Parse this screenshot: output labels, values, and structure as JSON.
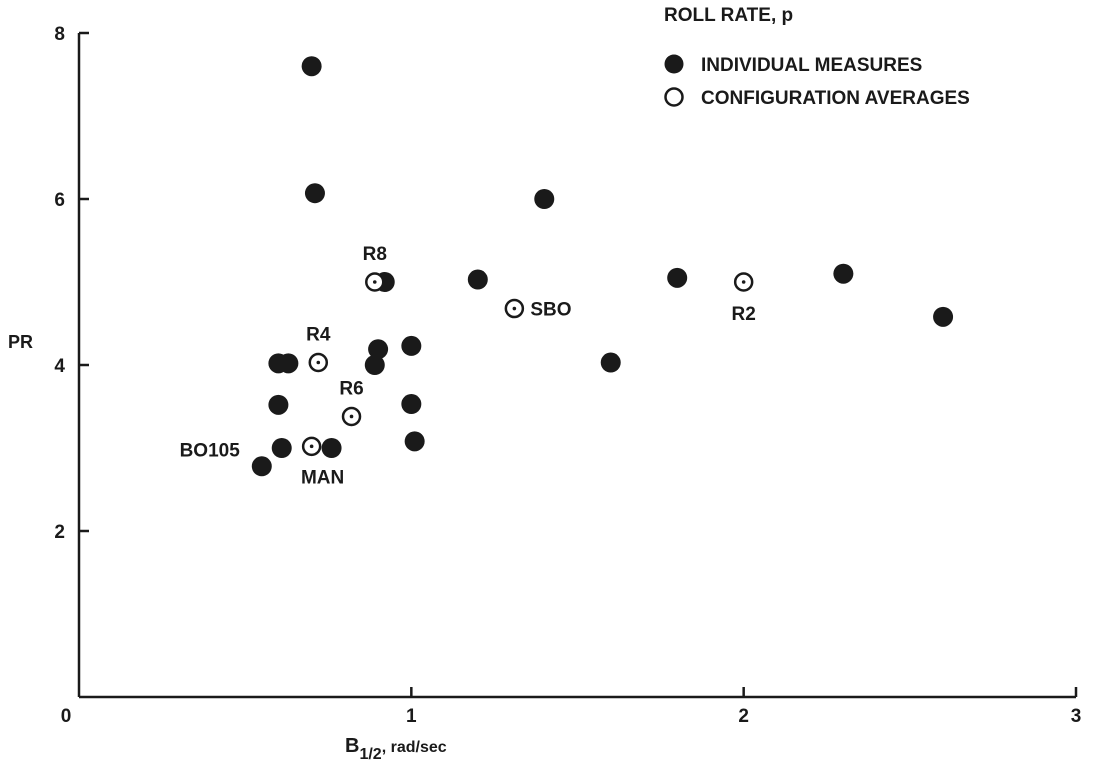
{
  "chart_data": {
    "type": "scatter",
    "title": "",
    "xlabel_main": "B",
    "xlabel_sub": "1/2",
    "xlabel_rest": ", rad/sec",
    "ylabel": "PR",
    "xlim": [
      0,
      3
    ],
    "ylim": [
      0,
      8
    ],
    "xticks": [
      {
        "value": 0,
        "label": "0"
      },
      {
        "value": 1,
        "label": "1"
      },
      {
        "value": 2,
        "label": "2"
      },
      {
        "value": 3,
        "label": "3"
      }
    ],
    "yticks": [
      {
        "value": 2,
        "label": "2"
      },
      {
        "value": 4,
        "label": "4"
      },
      {
        "value": 6,
        "label": "6"
      },
      {
        "value": 8,
        "label": "8"
      }
    ],
    "legend_title": "ROLL RATE, p",
    "legend_position": "top-right",
    "series": [
      {
        "name": "INDIVIDUAL MEASURES",
        "marker": "filled-circle",
        "points": [
          {
            "x": 0.7,
            "y": 7.6
          },
          {
            "x": 0.71,
            "y": 6.07
          },
          {
            "x": 1.4,
            "y": 6.0
          },
          {
            "x": 0.92,
            "y": 5.0
          },
          {
            "x": 1.2,
            "y": 5.03
          },
          {
            "x": 1.8,
            "y": 5.05
          },
          {
            "x": 2.3,
            "y": 5.1
          },
          {
            "x": 2.6,
            "y": 4.58
          },
          {
            "x": 0.9,
            "y": 4.19
          },
          {
            "x": 1.0,
            "y": 4.23
          },
          {
            "x": 0.89,
            "y": 4.0
          },
          {
            "x": 1.6,
            "y": 4.03
          },
          {
            "x": 0.6,
            "y": 4.02
          },
          {
            "x": 0.63,
            "y": 4.02
          },
          {
            "x": 0.6,
            "y": 3.52
          },
          {
            "x": 1.0,
            "y": 3.53
          },
          {
            "x": 0.61,
            "y": 3.0
          },
          {
            "x": 0.76,
            "y": 3.0
          },
          {
            "x": 1.01,
            "y": 3.08
          },
          {
            "x": 0.55,
            "y": 2.78
          }
        ]
      },
      {
        "name": "CONFIGURATION AVERAGES",
        "marker": "open-circle",
        "points": [
          {
            "x": 0.89,
            "y": 5.0,
            "label": "R8"
          },
          {
            "x": 1.31,
            "y": 4.68,
            "label": "SBO"
          },
          {
            "x": 2.0,
            "y": 5.0,
            "label": "R2"
          },
          {
            "x": 0.72,
            "y": 4.03,
            "label": "R4"
          },
          {
            "x": 0.82,
            "y": 3.38,
            "label": "R6"
          },
          {
            "x": 0.7,
            "y": 3.02,
            "label": "MAN"
          }
        ]
      }
    ],
    "annotations": [
      {
        "text": "BO105",
        "x": 0.55,
        "y": 2.78
      }
    ],
    "grid": false
  }
}
